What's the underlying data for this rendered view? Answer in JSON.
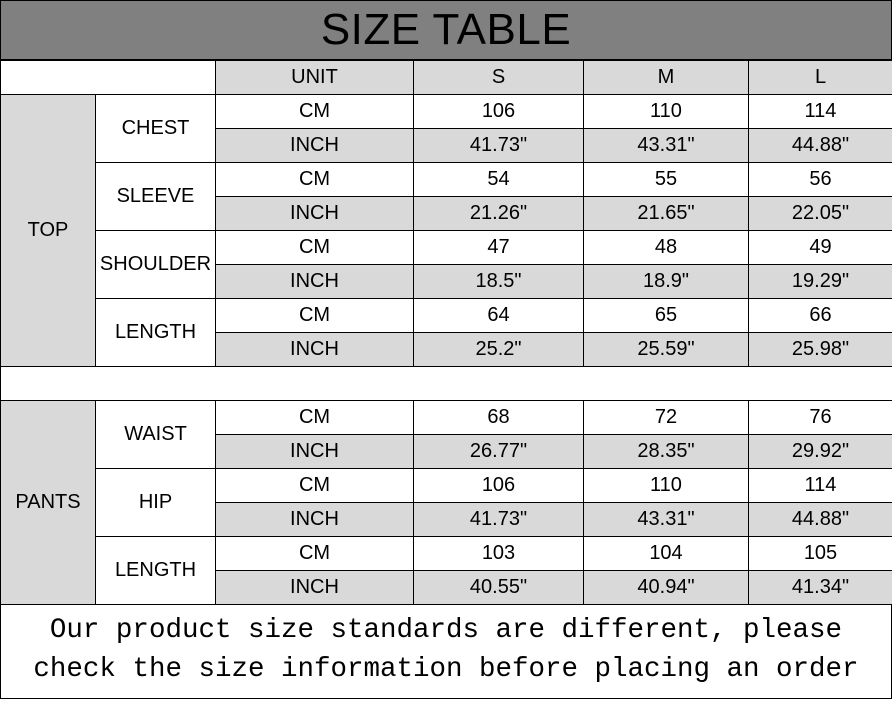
{
  "title": "SIZE TABLE",
  "header": {
    "unit": "UNIT",
    "sizes": [
      "S",
      "M",
      "L"
    ]
  },
  "colors": {
    "title_bg": "#808080",
    "shade": "#d9d9d9",
    "border": "#000000"
  },
  "sections": [
    {
      "name": "TOP",
      "groups": [
        {
          "measure": "CHEST",
          "rows": [
            {
              "unit": "CM",
              "values": [
                "106",
                "110",
                "114"
              ]
            },
            {
              "unit": "INCH",
              "values": [
                "41.73\"",
                "43.31\"",
                "44.88\""
              ]
            }
          ]
        },
        {
          "measure": "SLEEVE",
          "rows": [
            {
              "unit": "CM",
              "values": [
                "54",
                "55",
                "56"
              ]
            },
            {
              "unit": "INCH",
              "values": [
                "21.26\"",
                "21.65\"",
                "22.05\""
              ]
            }
          ]
        },
        {
          "measure": "SHOULDER",
          "rows": [
            {
              "unit": "CM",
              "values": [
                "47",
                "48",
                "49"
              ]
            },
            {
              "unit": "INCH",
              "values": [
                "18.5\"",
                "18.9\"",
                "19.29\""
              ]
            }
          ]
        },
        {
          "measure": "LENGTH",
          "rows": [
            {
              "unit": "CM",
              "values": [
                "64",
                "65",
                "66"
              ]
            },
            {
              "unit": "INCH",
              "values": [
                "25.2\"",
                "25.59\"",
                "25.98\""
              ]
            }
          ]
        }
      ]
    },
    {
      "name": "PANTS",
      "groups": [
        {
          "measure": "WAIST",
          "rows": [
            {
              "unit": "CM",
              "values": [
                "68",
                "72",
                "76"
              ]
            },
            {
              "unit": "INCH",
              "values": [
                "26.77\"",
                "28.35\"",
                "29.92\""
              ]
            }
          ]
        },
        {
          "measure": "HIP",
          "rows": [
            {
              "unit": "CM",
              "values": [
                "106",
                "110",
                "114"
              ]
            },
            {
              "unit": "INCH",
              "values": [
                "41.73\"",
                "43.31\"",
                "44.88\""
              ]
            }
          ]
        },
        {
          "measure": "LENGTH",
          "rows": [
            {
              "unit": "CM",
              "values": [
                "103",
                "104",
                "105"
              ]
            },
            {
              "unit": "INCH",
              "values": [
                "40.55\"",
                "40.94\"",
                "41.34\""
              ]
            }
          ]
        }
      ]
    }
  ],
  "footer": {
    "line1": "Our product size standards are different, please",
    "line2": "check the size information before placing an order"
  }
}
